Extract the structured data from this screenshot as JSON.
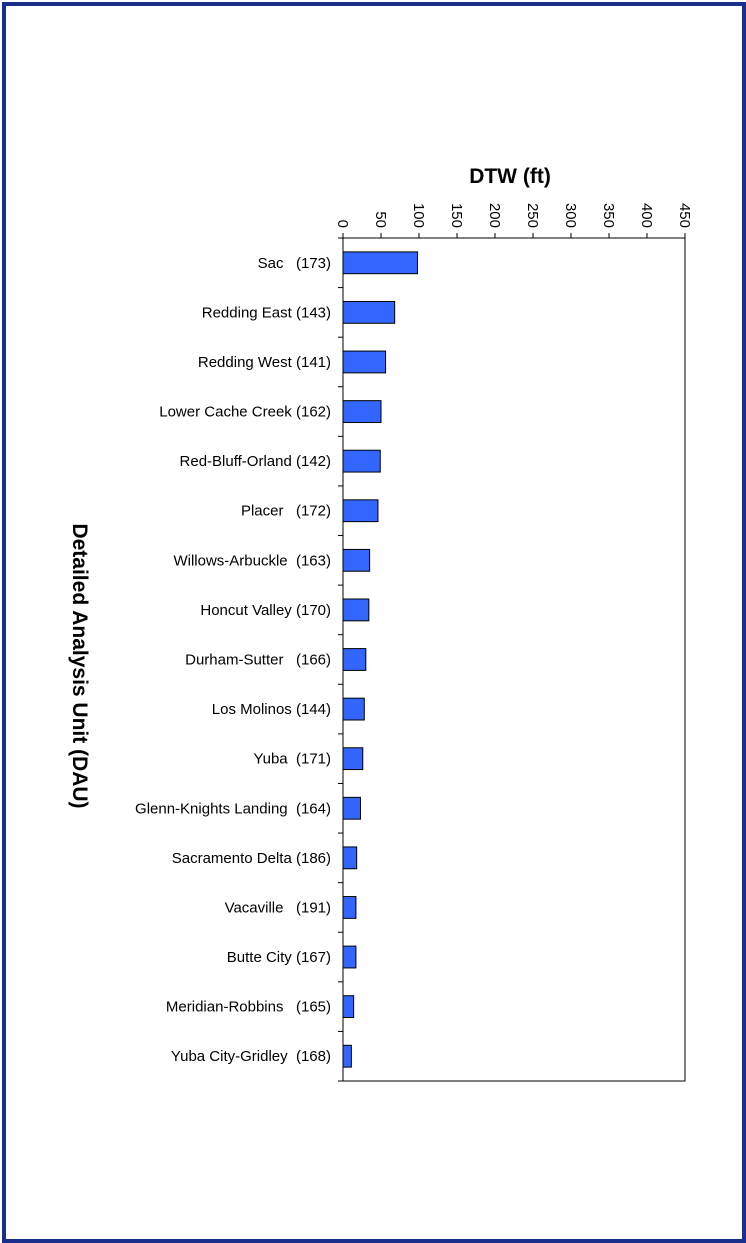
{
  "chart_data": {
    "type": "bar",
    "orientation": "horizontal",
    "title": "",
    "xlabel": "DTW (ft)",
    "ylabel": "Detailed Analysis Unit (DAU)",
    "xlim": [
      0,
      450
    ],
    "xticks": [
      0,
      50,
      100,
      150,
      200,
      250,
      300,
      350,
      400,
      450
    ],
    "grid": false,
    "bar_color": "#3366ff",
    "categories": [
      "Sac   (173)",
      "Redding East (143)",
      "Redding West (141)",
      "Lower Cache Creek (162)",
      "Red-Bluff-Orland (142)",
      "Placer   (172)",
      "Willows-Arbuckle  (163)",
      "Honcut Valley (170)",
      "Durham-Sutter   (166)",
      "Los Molinos (144)",
      "Yuba  (171)",
      "Glenn-Knights Landing  (164)",
      "Sacramento Delta (186)",
      "Vacaville   (191)",
      "Butte City (167)",
      "Meridian-Robbins   (165)",
      "Yuba City-Gridley  (168)"
    ],
    "values": [
      98,
      68,
      56,
      50,
      49,
      46,
      35,
      34,
      30,
      28,
      26,
      23,
      18,
      17,
      17,
      14,
      11
    ]
  }
}
